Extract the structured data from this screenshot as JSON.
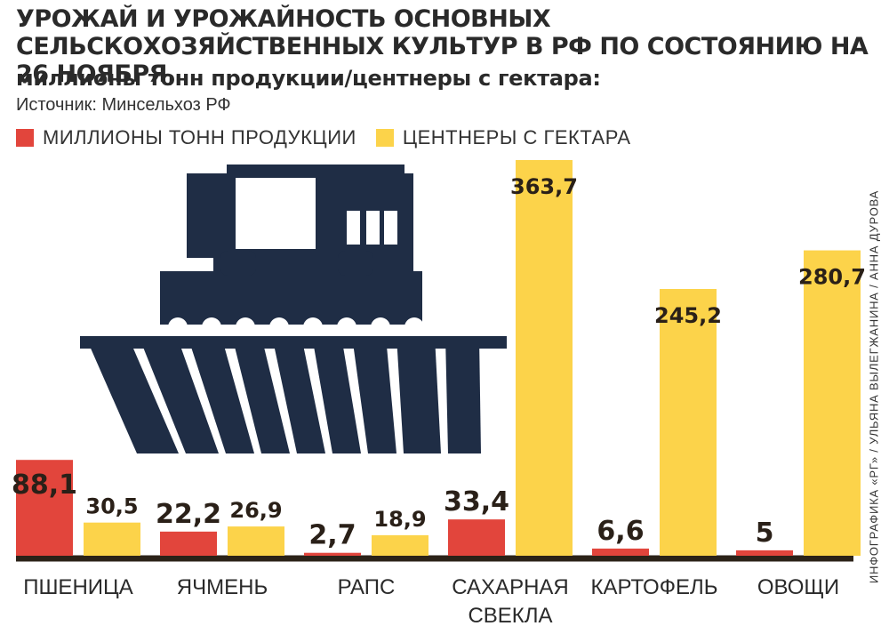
{
  "header": {
    "title": "УРОЖАЙ И УРОЖАЙНОСТЬ ОСНОВНЫХ СЕЛЬСКОХОЗЯЙСТВЕННЫХ КУЛЬТУР В РФ ПО СОСТОЯНИЮ НА 26 НОЯБРЯ,",
    "subtitle": "миллионы тонн продукции/центнеры с гектара:",
    "source": "Источник: Минсельхоз РФ",
    "credit": "ИНФОГРАФИКА «РГ» / УЛЬЯНА ВЫЛЕГЖАНИНА / АННА ДУРОВА"
  },
  "colors": {
    "production": "#e2453c",
    "yield": "#fcd34a",
    "baseline": "#2b2218",
    "illustration": "#1f2d45"
  },
  "icons": [
    "combine-harvester-illustration"
  ],
  "chart_data": {
    "type": "bar",
    "title": "УРОЖАЙ И УРОЖАЙНОСТЬ ОСНОВНЫХ СЕЛЬСКОХОЗЯЙСТВЕННЫХ КУЛЬТУР В РФ ПО СОСТОЯНИЮ НА 26 НОЯБРЯ,",
    "subtitle": "миллионы тонн продукции/центнеры с гектара:",
    "categories": [
      "ПШЕНИЦА",
      "ЯЧМЕНЬ",
      "РАПС",
      "САХАРНАЯ СВЕКЛА",
      "КАРТОФЕЛЬ",
      "ОВОЩИ"
    ],
    "series": [
      {
        "name": "МИЛЛИОНЫ ТОНН ПРОДУКЦИИ",
        "labels": [
          "88,1",
          "22,2",
          "2,7",
          "33,4",
          "6,6",
          "5"
        ],
        "values": [
          88.1,
          22.2,
          2.7,
          33.4,
          6.6,
          5
        ]
      },
      {
        "name": "ЦЕНТНЕРЫ С ГЕКТАРА",
        "labels": [
          "30,5",
          "26,9",
          "18,9",
          "363,7",
          "245,2",
          "280,7"
        ],
        "values": [
          30.5,
          26.9,
          18.9,
          363.7,
          245.2,
          280.7
        ]
      }
    ],
    "legend": "top-left",
    "grid": false
  }
}
